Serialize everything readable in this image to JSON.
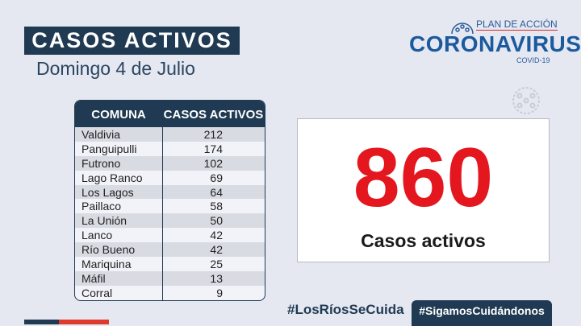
{
  "header": {
    "title": "CASOS ACTIVOS",
    "subtitle": "Domingo 4 de Julio"
  },
  "logo": {
    "top": "PLAN DE ACCIÓN",
    "main": "CORONAVIRUS",
    "sub": "COVID-19"
  },
  "table": {
    "headers": [
      "COMUNA",
      "CASOS ACTIVOS"
    ],
    "rows": [
      [
        "Valdivia",
        "212"
      ],
      [
        "Panguipulli",
        "174"
      ],
      [
        "Futrono",
        "102"
      ],
      [
        "Lago Ranco",
        "69"
      ],
      [
        "Los Lagos",
        "64"
      ],
      [
        "Paillaco",
        "58"
      ],
      [
        "La Unión",
        "50"
      ],
      [
        "Lanco",
        "42"
      ],
      [
        "Río Bueno",
        "42"
      ],
      [
        "Mariquina",
        "25"
      ],
      [
        "Máfil",
        "13"
      ],
      [
        "Corral",
        "9"
      ]
    ]
  },
  "total": {
    "value": "860",
    "label": "Casos activos"
  },
  "footer": {
    "hashtag1": "#LosRíosSeCuida",
    "hashtag2": "#SigamosCuidándonos"
  },
  "colors": {
    "navy": "#1f3a52",
    "red": "#e4161e",
    "background": "#e5e7f1"
  }
}
